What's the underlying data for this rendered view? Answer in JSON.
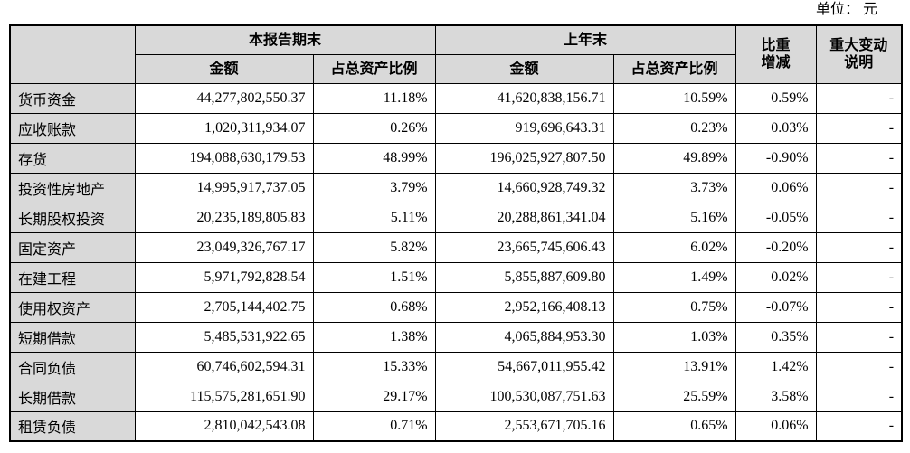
{
  "unit_label": "单位： 元",
  "colors": {
    "header_bg": "#d9d9d9",
    "border": "#000000"
  },
  "table": {
    "header": {
      "item_col": "",
      "current_period": "本报告期末",
      "prior_period": "上年末",
      "amount_current": "金额",
      "ratio_current": "占总资产比例",
      "amount_prior": "金额",
      "ratio_prior": "占总资产比例",
      "change": "比重增减",
      "explanation": "重大变动说明"
    },
    "rows": [
      {
        "item": "货币资金",
        "current_amount": "44,277,802,550.37",
        "current_ratio": "11.18%",
        "prior_amount": "41,620,838,156.71",
        "prior_ratio": "10.59%",
        "change": "0.59%",
        "note": "-"
      },
      {
        "item": "应收账款",
        "current_amount": "1,020,311,934.07",
        "current_ratio": "0.26%",
        "prior_amount": "919,696,643.31",
        "prior_ratio": "0.23%",
        "change": "0.03%",
        "note": "-"
      },
      {
        "item": "存货",
        "current_amount": "194,088,630,179.53",
        "current_ratio": "48.99%",
        "prior_amount": "196,025,927,807.50",
        "prior_ratio": "49.89%",
        "change": "-0.90%",
        "note": "-"
      },
      {
        "item": "投资性房地产",
        "current_amount": "14,995,917,737.05",
        "current_ratio": "3.79%",
        "prior_amount": "14,660,928,749.32",
        "prior_ratio": "3.73%",
        "change": "0.06%",
        "note": "-"
      },
      {
        "item": "长期股权投资",
        "current_amount": "20,235,189,805.83",
        "current_ratio": "5.11%",
        "prior_amount": "20,288,861,341.04",
        "prior_ratio": "5.16%",
        "change": "-0.05%",
        "note": "-"
      },
      {
        "item": "固定资产",
        "current_amount": "23,049,326,767.17",
        "current_ratio": "5.82%",
        "prior_amount": "23,665,745,606.43",
        "prior_ratio": "6.02%",
        "change": "-0.20%",
        "note": "-"
      },
      {
        "item": "在建工程",
        "current_amount": "5,971,792,828.54",
        "current_ratio": "1.51%",
        "prior_amount": "5,855,887,609.80",
        "prior_ratio": "1.49%",
        "change": "0.02%",
        "note": "-"
      },
      {
        "item": "使用权资产",
        "current_amount": "2,705,144,402.75",
        "current_ratio": "0.68%",
        "prior_amount": "2,952,166,408.13",
        "prior_ratio": "0.75%",
        "change": "-0.07%",
        "note": "-"
      },
      {
        "item": "短期借款",
        "current_amount": "5,485,531,922.65",
        "current_ratio": "1.38%",
        "prior_amount": "4,065,884,953.30",
        "prior_ratio": "1.03%",
        "change": "0.35%",
        "note": "-"
      },
      {
        "item": "合同负债",
        "current_amount": "60,746,602,594.31",
        "current_ratio": "15.33%",
        "prior_amount": "54,667,011,955.42",
        "prior_ratio": "13.91%",
        "change": "1.42%",
        "note": "-"
      },
      {
        "item": "长期借款",
        "current_amount": "115,575,281,651.90",
        "current_ratio": "29.17%",
        "prior_amount": "100,530,087,751.63",
        "prior_ratio": "25.59%",
        "change": "3.58%",
        "note": "-"
      },
      {
        "item": "租赁负债",
        "current_amount": "2,810,042,543.08",
        "current_ratio": "0.71%",
        "prior_amount": "2,553,671,705.16",
        "prior_ratio": "0.65%",
        "change": "0.06%",
        "note": "-"
      }
    ]
  }
}
